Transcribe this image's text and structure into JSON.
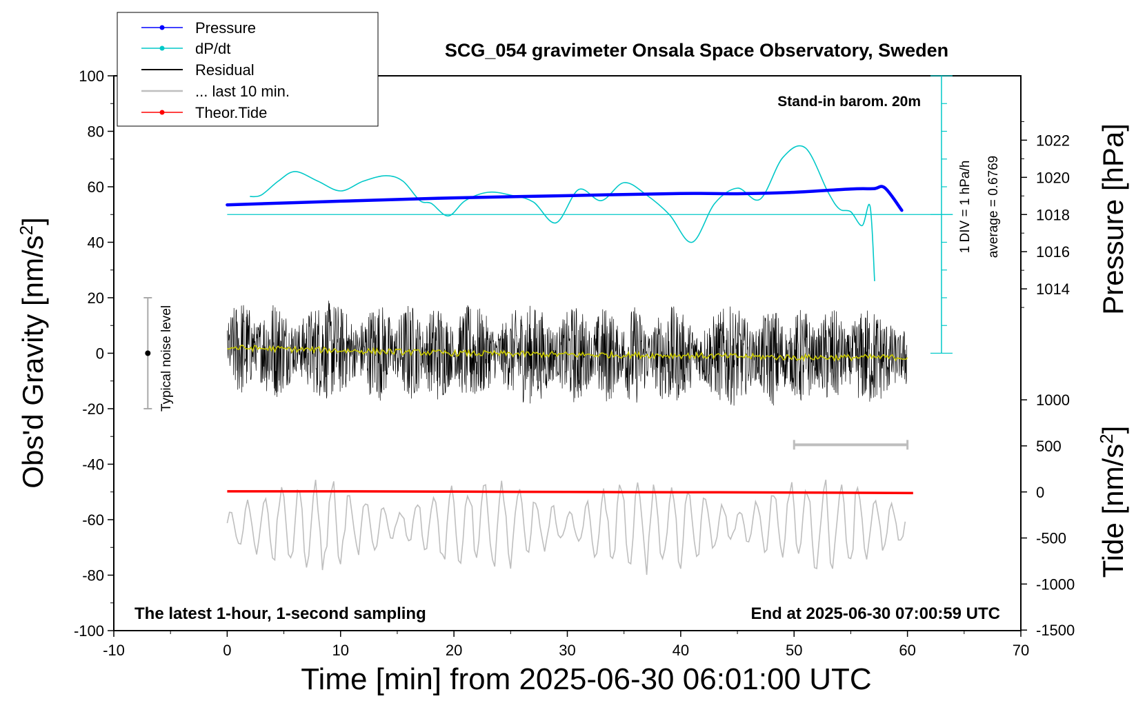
{
  "chart_data": {
    "type": "line",
    "title": "SCG_054 gravimeter Onsala Space Observatory, Sweden",
    "xlabel": "Time [min] from 2025-06-30 06:01:00 UTC",
    "ylabel": "Obs'd Gravity [nm/s",
    "ylabel_sup": "2",
    "ylabel_end": "]",
    "y2label": "Pressure [hPa]",
    "y3label": "Tide [nm/s",
    "y3label_sup": "2",
    "y3label_end": "]",
    "xlim": [
      -10,
      70
    ],
    "ylim": [
      -100,
      100
    ],
    "x_ticks": [
      "-10",
      "0",
      "10",
      "20",
      "30",
      "40",
      "50",
      "60",
      "70"
    ],
    "y_ticks": [
      "100",
      "80",
      "60",
      "40",
      "20",
      "0",
      "-20",
      "-40",
      "-60",
      "-80",
      "-100"
    ],
    "pressure_ticks": [
      "1022",
      "1020",
      "1018",
      "1016",
      "1014"
    ],
    "tide_ticks": [
      "1000",
      "500",
      "0",
      "-500",
      "-1000",
      "-1500"
    ],
    "legend": {
      "placement": "top-left",
      "items": [
        {
          "label": "Pressure",
          "color": "#0000ff",
          "style": "line-dot"
        },
        {
          "label": "dP/dt",
          "color": "#00c8c8",
          "style": "line-dot"
        },
        {
          "label": "Residual",
          "color": "#000000",
          "style": "line"
        },
        {
          "label": "... last 10 min.",
          "color": "#bebebe",
          "style": "line"
        },
        {
          "label": "Theor.Tide",
          "color": "#ff0000",
          "style": "line-dot"
        }
      ]
    },
    "annotations": {
      "barometer": "Stand-in barom. 20m",
      "div_label": "1 DIV = 1 hPa/h",
      "average_label": "average = 0.6769",
      "noise_label": "Typical noise level",
      "sampling": "The latest 1-hour, 1-second sampling",
      "end_time": "End at 2025-06-30 07:00:59 UTC"
    },
    "noise_bar": {
      "x": -7,
      "y_range": [
        -20,
        20
      ],
      "center": 0
    },
    "last10_bar": {
      "x_range": [
        50,
        60
      ],
      "y": -33
    },
    "dpdt_baseline": {
      "y": 50,
      "x_range": [
        0,
        64
      ]
    },
    "series": [
      {
        "name": "Pressure",
        "color": "#0000ff",
        "x": [
          0,
          10,
          20,
          30,
          40,
          45,
          50,
          55,
          57,
          58,
          59.5
        ],
        "y": [
          53.5,
          54.8,
          56.0,
          56.8,
          57.6,
          57.5,
          58.0,
          59.2,
          59.3,
          59.6,
          51.5
        ]
      },
      {
        "name": "dP/dt",
        "color": "#00c8c8",
        "x": [
          2,
          3,
          4.5,
          6,
          8,
          10,
          12,
          14,
          15.5,
          17,
          18,
          19.5,
          21,
          23,
          25,
          27,
          29,
          31,
          33,
          35,
          37,
          39,
          41,
          43,
          45,
          47,
          49,
          51,
          53,
          54,
          55,
          56,
          56.7,
          57.1
        ],
        "y": [
          56.5,
          57,
          62,
          65.5,
          62,
          58.5,
          62,
          64,
          62,
          55,
          54,
          49.5,
          55,
          58,
          57,
          54.5,
          47,
          59,
          55,
          61.5,
          57,
          50,
          40,
          54,
          59.5,
          55.5,
          70.5,
          74,
          58,
          52,
          51,
          46,
          53,
          26
        ]
      },
      {
        "name": "Residual",
        "color": "#000000",
        "x": [
          0,
          10,
          20,
          30,
          40,
          50,
          60
        ],
        "y": [
          2,
          1,
          0,
          -0.5,
          -0.8,
          -1.5,
          -1.5
        ],
        "envelope": 18
      },
      {
        "name": "Running mean",
        "color": "#c8c800",
        "x": [
          0,
          10,
          20,
          30,
          40,
          50,
          60
        ],
        "y": [
          2,
          1,
          0,
          -0.5,
          -0.8,
          -1.5,
          -1.5
        ]
      },
      {
        "name": "Theor.Tide",
        "color": "#ff0000",
        "x": [
          0,
          10,
          20,
          30,
          40,
          50,
          60.5
        ],
        "y": [
          -49.8,
          -49.8,
          -49.9,
          -50.0,
          -50.1,
          -50.2,
          -50.4
        ]
      },
      {
        "name": "... last 10 min.",
        "color": "#bebebe",
        "x_range": [
          0,
          60
        ],
        "y_center": -62,
        "amplitude": 12
      }
    ]
  }
}
